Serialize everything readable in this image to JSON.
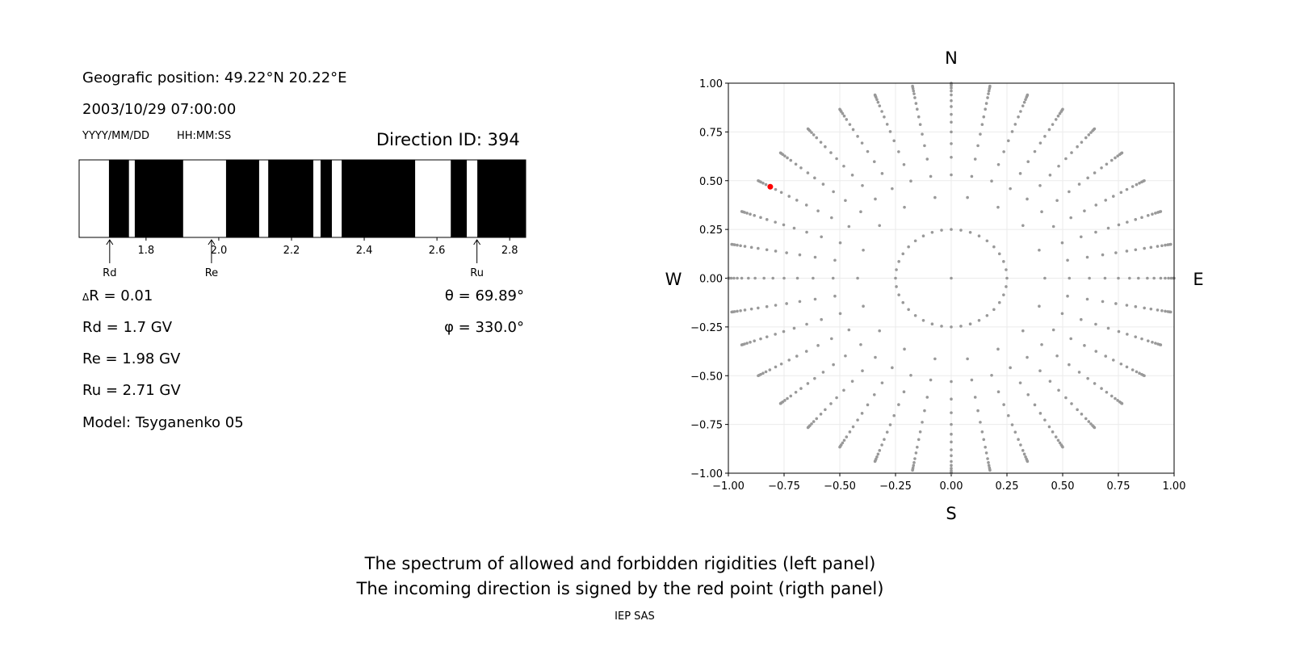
{
  "left_panel": {
    "position": "Geografic position: 49.22°N 20.22°E",
    "datetime": "2003/10/29 07:00:00",
    "date_format": "YYYY/MM/DD",
    "time_format": "HH:MM:SS",
    "direction": "Direction ID: 394",
    "dR": "R = 0.01",
    "dR_symbol": "Δ",
    "Rd": "Rd = 1.7 GV",
    "Re": "Re = 1.98 GV",
    "Ru": "Ru = 2.71 GV",
    "model": "Model: Tsyganenko 05",
    "theta": "θ = 69.89°",
    "phi": "φ = 330.0°"
  },
  "compass": {
    "N": "N",
    "S": "S",
    "W": "W",
    "E": "E"
  },
  "caption": {
    "line1": "The spectrum of allowed and forbidden rigidities (left panel)",
    "line2": "The incoming direction is signed by the red point (rigth panel)",
    "credit": "IEP SAS"
  },
  "chart_data": [
    {
      "type": "bar",
      "xlim": [
        1.616,
        2.844
      ],
      "xticks": [
        "1.8",
        "2.0",
        "2.2",
        "2.4",
        "2.6",
        "2.8"
      ],
      "background_color": "#000000",
      "allowed_color": "#ffffff",
      "allowed_intervals": [
        [
          1.616,
          1.698
        ],
        [
          1.753,
          1.769
        ],
        [
          1.902,
          2.02
        ],
        [
          2.111,
          2.136
        ],
        [
          2.26,
          2.28
        ],
        [
          2.311,
          2.338
        ],
        [
          2.54,
          2.638
        ],
        [
          2.682,
          2.711
        ]
      ],
      "markers": [
        {
          "label": "Rd",
          "x": 1.7
        },
        {
          "label": "Re",
          "x": 1.98
        },
        {
          "label": "Ru",
          "x": 2.71
        }
      ]
    },
    {
      "type": "scatter",
      "xlim": [
        -1,
        1
      ],
      "ylim": [
        -1,
        1
      ],
      "xticks": [
        "−1.00",
        "−0.75",
        "−0.50",
        "−0.25",
        "0.00",
        "0.25",
        "0.50",
        "0.75",
        "1.00"
      ],
      "yticks": [
        "−1.00",
        "−0.75",
        "−0.50",
        "−0.25",
        "0.00",
        "0.25",
        "0.50",
        "0.75",
        "1.00"
      ],
      "grid": true,
      "point_color": "#999999",
      "highlight_color": "#ff0000",
      "grid_azimuths_deg_step": 10,
      "grid_radii": [
        0.25,
        0.42,
        0.53,
        0.62,
        0.69,
        0.75,
        0.8,
        0.84,
        0.88,
        0.91,
        0.94,
        0.96,
        0.975,
        0.987,
        0.995,
        1.0
      ],
      "highlight": {
        "x": -0.812,
        "y": 0.469
      }
    }
  ]
}
